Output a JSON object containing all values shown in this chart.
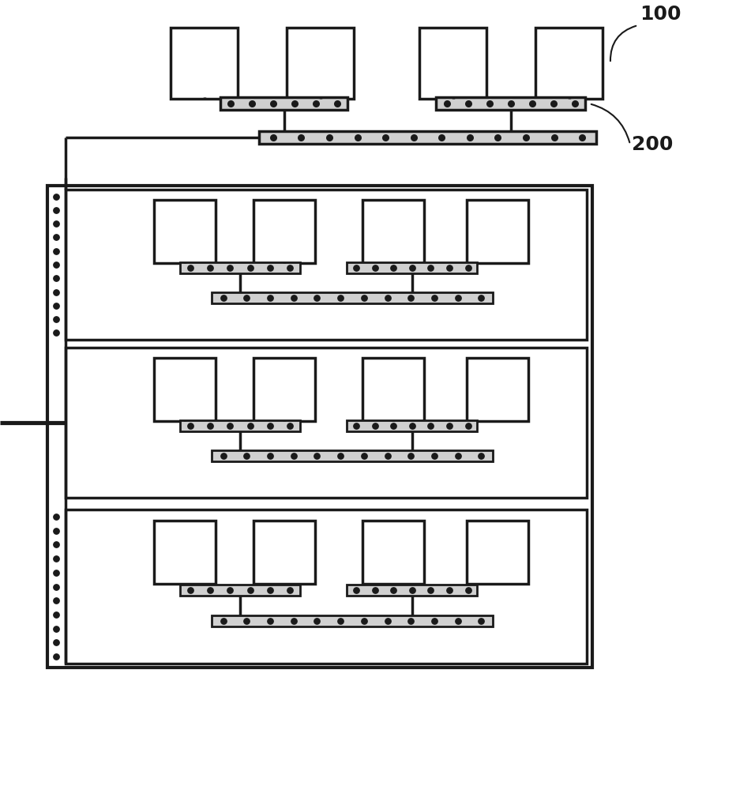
{
  "bg_color": "#ffffff",
  "line_color": "#1a1a1a",
  "patch_color": "#ffffff",
  "line_width": 2.5,
  "patch_lw": 2.5,
  "title": "",
  "label_100": "100",
  "label_200": "200",
  "dot_color": "#111111",
  "dot_size": 35
}
